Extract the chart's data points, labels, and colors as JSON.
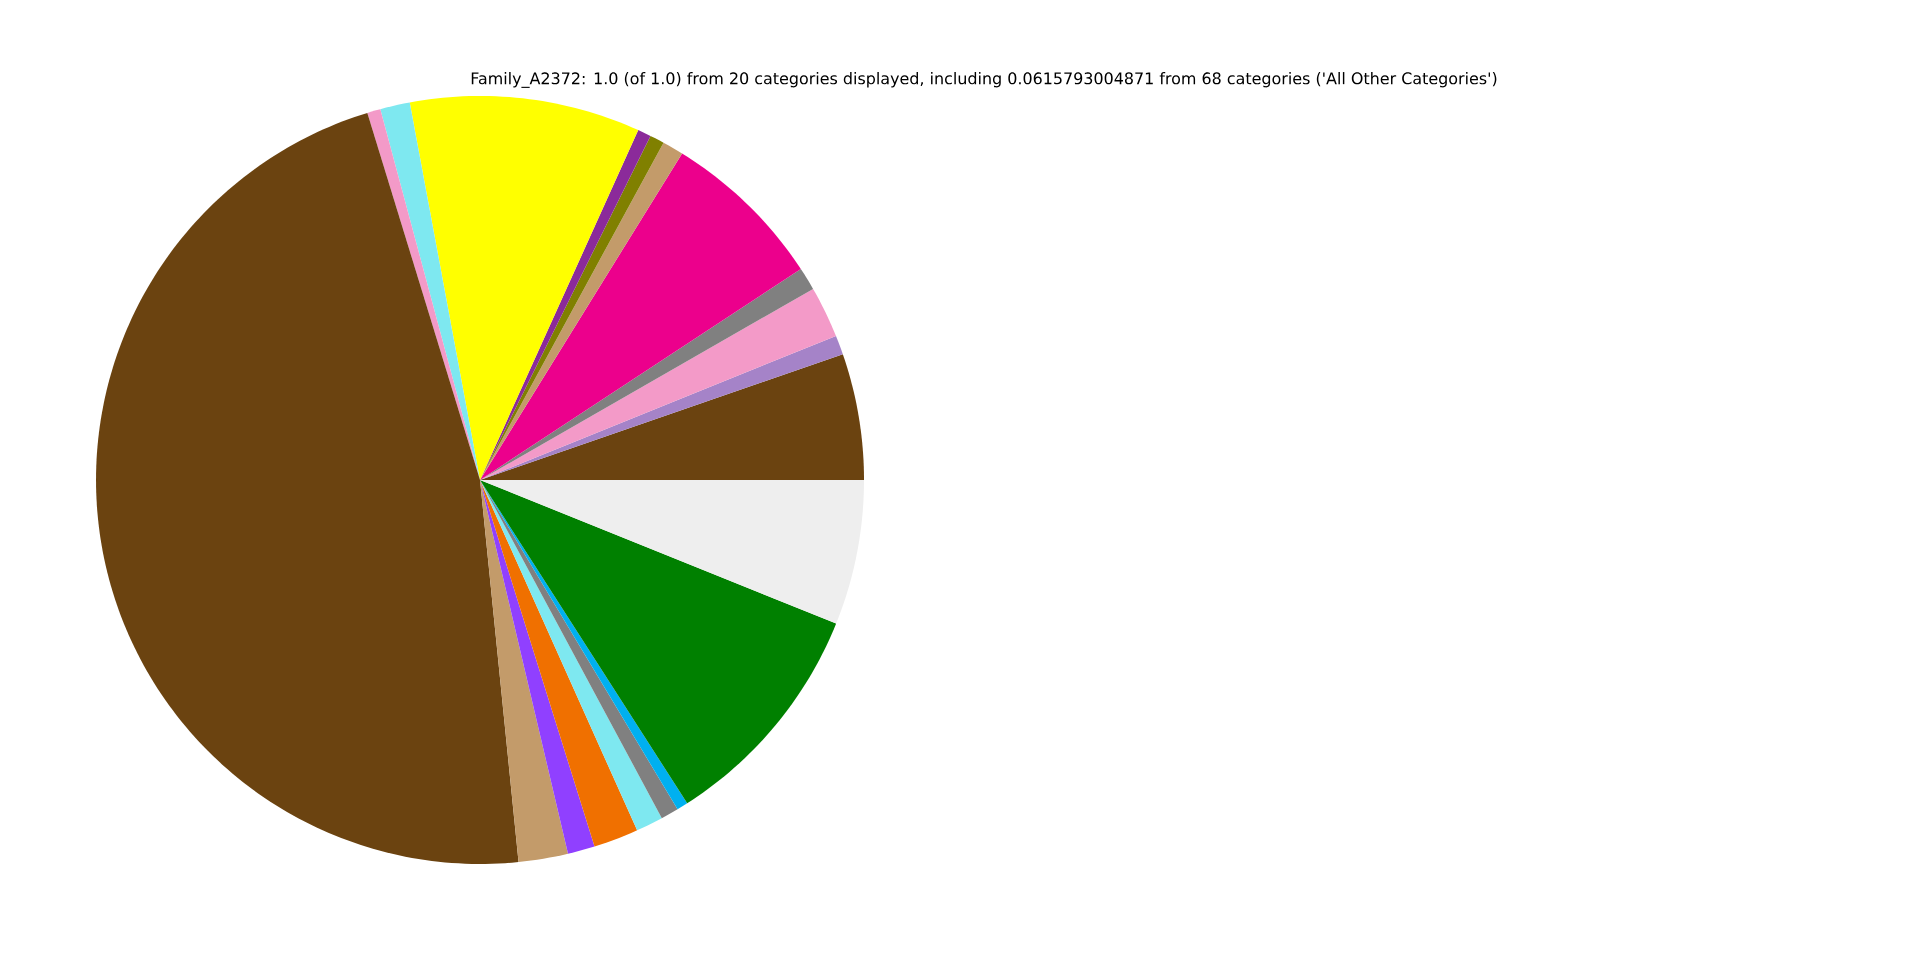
{
  "chart_data": {
    "type": "pie",
    "title": "Family_A2372: 1.0 (of 1.0) from 20 categories displayed, including 0.0615793004871 from 68 categories ('All Other Categories')",
    "categories": [
      null,
      null,
      null,
      null,
      null,
      null,
      null,
      null,
      null,
      null,
      null,
      null,
      null,
      null,
      null,
      null,
      null,
      null,
      null,
      null
    ],
    "values": [
      5.31,
      0.81,
      2.17,
      0.97,
      6.92,
      0.89,
      0.61,
      0.56,
      9.69,
      1.25,
      0.56,
      46.86,
      2.08,
      1.14,
      1.89,
      1.14,
      0.75,
      0.47,
      9.83,
      6.1
    ],
    "colors": [
      "#6b4310",
      "#a583c8",
      "#f39ac8",
      "#808080",
      "#ec008c",
      "#c39b6a",
      "#808000",
      "#8b2a9a",
      "#ffff00",
      "#7ee8f0",
      "#f39ac8",
      "#6b4310",
      "#c39b6a",
      "#9040ff",
      "#f07000",
      "#7ee8f0",
      "#808080",
      "#00b0f0",
      "#008000",
      "#eeeeee"
    ]
  }
}
